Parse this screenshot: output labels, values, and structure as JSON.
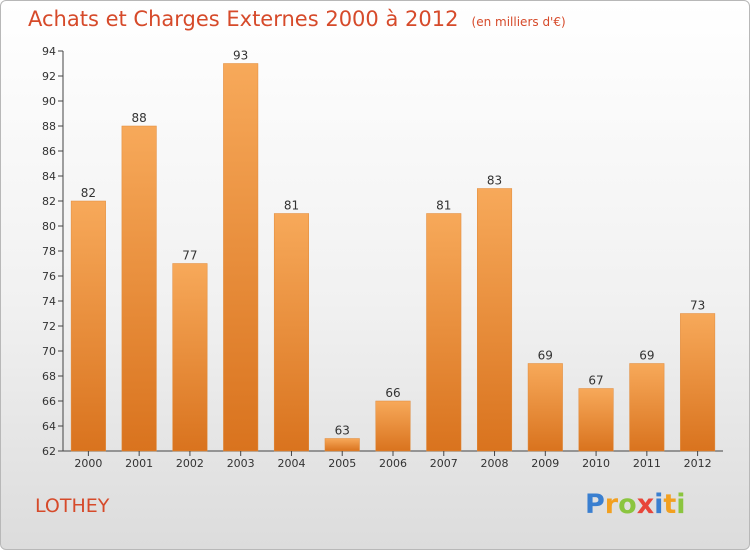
{
  "header": {
    "title": "Achats et Charges Externes 2000 à 2012",
    "unit": "(en milliers d'€)"
  },
  "commune": "LOTHEY",
  "logo": {
    "letters": [
      {
        "ch": "P",
        "color": "#3a7fd0"
      },
      {
        "ch": "r",
        "color": "#f2a020"
      },
      {
        "ch": "o",
        "color": "#8bc53f"
      },
      {
        "ch": "x",
        "color": "#e8463a"
      },
      {
        "ch": "i",
        "color": "#3a7fd0"
      },
      {
        "ch": "t",
        "color": "#f2a020"
      },
      {
        "ch": "i",
        "color": "#8bc53f"
      }
    ]
  },
  "chart_data": {
    "type": "bar",
    "categories": [
      "2000",
      "2001",
      "2002",
      "2003",
      "2004",
      "2005",
      "2006",
      "2007",
      "2008",
      "2009",
      "2010",
      "2011",
      "2012"
    ],
    "values": [
      82,
      88,
      77,
      93,
      81,
      63,
      66,
      81,
      83,
      69,
      67,
      69,
      73
    ],
    "ylim": [
      62,
      94
    ],
    "yticks": [
      62,
      64,
      66,
      68,
      70,
      72,
      74,
      76,
      78,
      80,
      82,
      84,
      86,
      88,
      90,
      92,
      94
    ],
    "grid": false,
    "bar_color_top": "#f7a95a",
    "bar_color_bottom": "#d9731e"
  }
}
